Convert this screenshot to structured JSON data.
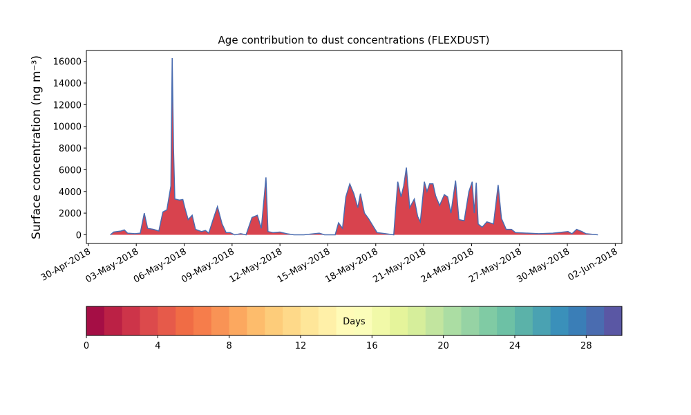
{
  "chart_data": {
    "type": "area",
    "title": "Age contribution to dust concentrations (FLEXDUST)",
    "y_label": "Surface concentration (ng m⁻³)",
    "x": [
      "2018-05-01T09:00",
      "2018-05-01T14:00",
      "2018-05-02T01:00",
      "2018-05-02T06:00",
      "2018-05-02T11:00",
      "2018-05-02T22:00",
      "2018-05-03T06:00",
      "2018-05-03T12:00",
      "2018-05-03T17:00",
      "2018-05-04T02:00",
      "2018-05-04T10:00",
      "2018-05-04T16:00",
      "2018-05-04T22:00",
      "2018-05-05T04:00",
      "2018-05-05T06:00",
      "2018-05-05T08:00",
      "2018-05-05T10:00",
      "2018-05-05T17:00",
      "2018-05-05T22:00",
      "2018-05-06T01:00",
      "2018-05-06T06:00",
      "2018-05-06T12:00",
      "2018-05-06T17:00",
      "2018-05-07T02:00",
      "2018-05-07T08:00",
      "2018-05-07T13:00",
      "2018-05-07T20:00",
      "2018-05-08T02:00",
      "2018-05-08T09:00",
      "2018-05-08T15:00",
      "2018-05-08T21:00",
      "2018-05-09T04:00",
      "2018-05-09T13:00",
      "2018-05-09T21:00",
      "2018-05-10T06:00",
      "2018-05-10T14:00",
      "2018-05-10T20:00",
      "2018-05-11T03:00",
      "2018-05-11T06:00",
      "2018-05-11T14:00",
      "2018-05-12T00:00",
      "2018-05-12T10:00",
      "2018-05-12T21:00",
      "2018-05-13T12:00",
      "2018-05-14T11:00",
      "2018-05-14T19:00",
      "2018-05-15T11:00",
      "2018-05-15T16:00",
      "2018-05-15T22:00",
      "2018-05-16T03:00",
      "2018-05-16T09:00",
      "2018-05-16T15:00",
      "2018-05-16T21:00",
      "2018-05-17T01:00",
      "2018-05-17T07:00",
      "2018-05-17T13:00",
      "2018-05-17T20:00",
      "2018-05-18T02:00",
      "2018-05-19T03:00",
      "2018-05-19T09:00",
      "2018-05-19T14:00",
      "2018-05-19T18:00",
      "2018-05-19T22:00",
      "2018-05-20T03:00",
      "2018-05-20T10:00",
      "2018-05-20T15:00",
      "2018-05-20T19:00",
      "2018-05-21T01:00",
      "2018-05-21T05:00",
      "2018-05-21T09:00",
      "2018-05-21T14:00",
      "2018-05-21T18:00",
      "2018-05-22T00:00",
      "2018-05-22T07:00",
      "2018-05-22T12:00",
      "2018-05-22T17:00",
      "2018-05-23T00:00",
      "2018-05-23T05:00",
      "2018-05-23T13:00",
      "2018-05-23T20:00",
      "2018-05-24T01:00",
      "2018-05-24T04:00",
      "2018-05-24T07:00",
      "2018-05-24T10:00",
      "2018-05-24T16:00",
      "2018-05-24T23:00",
      "2018-05-25T09:00",
      "2018-05-25T16:00",
      "2018-05-25T21:00",
      "2018-05-26T04:00",
      "2018-05-26T12:00",
      "2018-05-26T18:00",
      "2018-05-28T05:00",
      "2018-05-29T02:00",
      "2018-05-30T01:00",
      "2018-05-30T07:00",
      "2018-05-30T14:00",
      "2018-05-30T22:00",
      "2018-05-31T04:00",
      "2018-05-31T22:00"
    ],
    "values": [
      0,
      250,
      350,
      450,
      150,
      100,
      150,
      2000,
      600,
      500,
      350,
      2100,
      2300,
      4500,
      16300,
      8000,
      3300,
      3200,
      3250,
      2500,
      1400,
      1800,
      500,
      300,
      400,
      150,
      1500,
      2600,
      1000,
      200,
      200,
      0,
      100,
      0,
      1600,
      1800,
      600,
      5300,
      300,
      200,
      250,
      100,
      0,
      0,
      150,
      0,
      0,
      1100,
      600,
      3500,
      4700,
      3800,
      2500,
      3800,
      2000,
      1500,
      800,
      200,
      0,
      4900,
      3500,
      4500,
      6200,
      2500,
      3300,
      1700,
      1200,
      4900,
      4000,
      4700,
      4700,
      3600,
      2700,
      3700,
      3500,
      2000,
      5000,
      1400,
      1300,
      4000,
      4900,
      2000,
      4800,
      1000,
      700,
      1200,
      1000,
      4600,
      1500,
      500,
      500,
      200,
      100,
      150,
      300,
      100,
      500,
      300,
      100,
      0
    ],
    "color": "#d8434e",
    "line_color": "#4a6cb0",
    "xlim": [
      "2018-04-29T21:00",
      "2018-06-02T10:00"
    ],
    "xticks": [
      {
        "value": "2018-04-30T00:00",
        "label": "30-Apr-2018"
      },
      {
        "value": "2018-05-03T00:00",
        "label": "03-May-2018"
      },
      {
        "value": "2018-05-06T00:00",
        "label": "06-May-2018"
      },
      {
        "value": "2018-05-09T00:00",
        "label": "09-May-2018"
      },
      {
        "value": "2018-05-12T00:00",
        "label": "12-May-2018"
      },
      {
        "value": "2018-05-15T00:00",
        "label": "15-May-2018"
      },
      {
        "value": "2018-05-18T00:00",
        "label": "18-May-2018"
      },
      {
        "value": "2018-05-21T00:00",
        "label": "21-May-2018"
      },
      {
        "value": "2018-05-24T00:00",
        "label": "24-May-2018"
      },
      {
        "value": "2018-05-27T00:00",
        "label": "27-May-2018"
      },
      {
        "value": "2018-05-30T00:00",
        "label": "30-May-2018"
      },
      {
        "value": "2018-06-02T00:00",
        "label": "02-Jun-2018"
      }
    ],
    "ylim": [
      -800,
      17000
    ],
    "yticks": [
      0,
      2000,
      4000,
      6000,
      8000,
      10000,
      12000,
      14000,
      16000
    ],
    "colorbar": {
      "label": "Days",
      "lim": [
        0,
        30
      ],
      "ticks": [
        0,
        4,
        8,
        12,
        16,
        20,
        24,
        28
      ],
      "colors": [
        "#a50e45",
        "#bb2145",
        "#cd3449",
        "#dc4a4c",
        "#e65a4a",
        "#f06c45",
        "#f67d4b",
        "#f99355",
        "#fca85f",
        "#fdbc6c",
        "#fdcc7a",
        "#fed989",
        "#fee699",
        "#fff0a8",
        "#fffbb8",
        "#fbfdb9",
        "#f1f9a8",
        "#e5f49b",
        "#d6ee9b",
        "#c2e59f",
        "#abdda3",
        "#96d3a4",
        "#80cba4",
        "#6dc1a5",
        "#5bb2a9",
        "#4aa2b2",
        "#3a90ba",
        "#3a7eb7",
        "#4a6cb0",
        "#5a57a4"
      ]
    }
  }
}
